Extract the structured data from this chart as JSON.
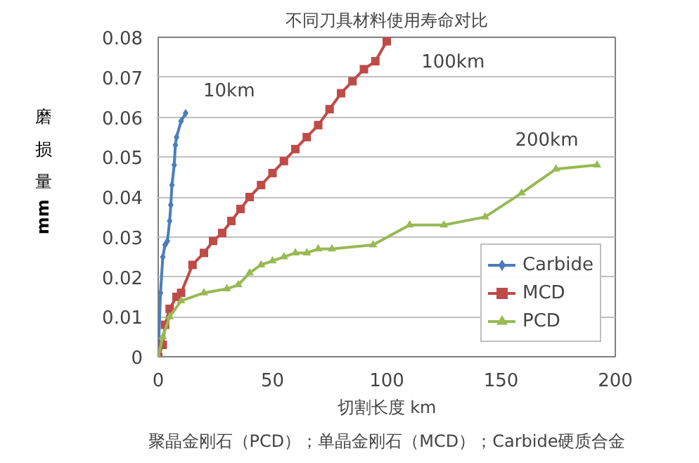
{
  "chart_data": {
    "type": "line",
    "title": "不同刀具材料使用寿命对比",
    "xlabel": "切割长度 km",
    "ylabel": "磨损量mm",
    "xlim": [
      0,
      200
    ],
    "xticks": [
      0,
      50,
      100,
      150,
      200
    ],
    "ylim": [
      0,
      0.08
    ],
    "yticks": [
      0,
      0.01,
      0.02,
      0.03,
      0.04,
      0.05,
      0.06,
      0.07,
      0.08
    ],
    "grid": "y",
    "legend": "bottom right",
    "line_style": "solid",
    "series": [
      {
        "name": "Carbide",
        "color": "#4a7ebb",
        "marker": "diamond",
        "x": [
          0,
          1,
          2,
          3,
          4,
          5,
          5.5,
          6,
          7,
          7.5,
          8,
          10,
          12
        ],
        "values": [
          0,
          0.016,
          0.025,
          0.028,
          0.029,
          0.034,
          0.038,
          0.043,
          0.048,
          0.053,
          0.055,
          0.059,
          0.061
        ]
      },
      {
        "name": "MCD",
        "color": "#be4b48",
        "marker": "square",
        "x": [
          0,
          2,
          3,
          5,
          8,
          10,
          15,
          20,
          24,
          28,
          32,
          36,
          40,
          45,
          50,
          55,
          60,
          65,
          70,
          75,
          80,
          85,
          90,
          95,
          100
        ],
        "values": [
          0,
          0.003,
          0.008,
          0.012,
          0.015,
          0.016,
          0.023,
          0.026,
          0.029,
          0.031,
          0.034,
          0.037,
          0.04,
          0.043,
          0.046,
          0.049,
          0.052,
          0.055,
          0.058,
          0.062,
          0.066,
          0.069,
          0.072,
          0.074,
          0.079
        ]
      },
      {
        "name": "PCD",
        "color": "#98b954",
        "marker": "triangle",
        "x": [
          0,
          2,
          5,
          10,
          20,
          30,
          35,
          40,
          45,
          50,
          55,
          60,
          65,
          70,
          76,
          94,
          110,
          125,
          143,
          159,
          174,
          192
        ],
        "values": [
          0,
          0.005,
          0.01,
          0.014,
          0.016,
          0.017,
          0.018,
          0.021,
          0.023,
          0.024,
          0.025,
          0.026,
          0.026,
          0.027,
          0.027,
          0.028,
          0.033,
          0.033,
          0.035,
          0.041,
          0.047,
          0.048
        ]
      }
    ],
    "annotations": [
      "10km",
      "100km",
      "200km",
      "聚晶金刚石（PCD）；单晶金刚石（MCD）；Carbide硬质合金"
    ]
  }
}
